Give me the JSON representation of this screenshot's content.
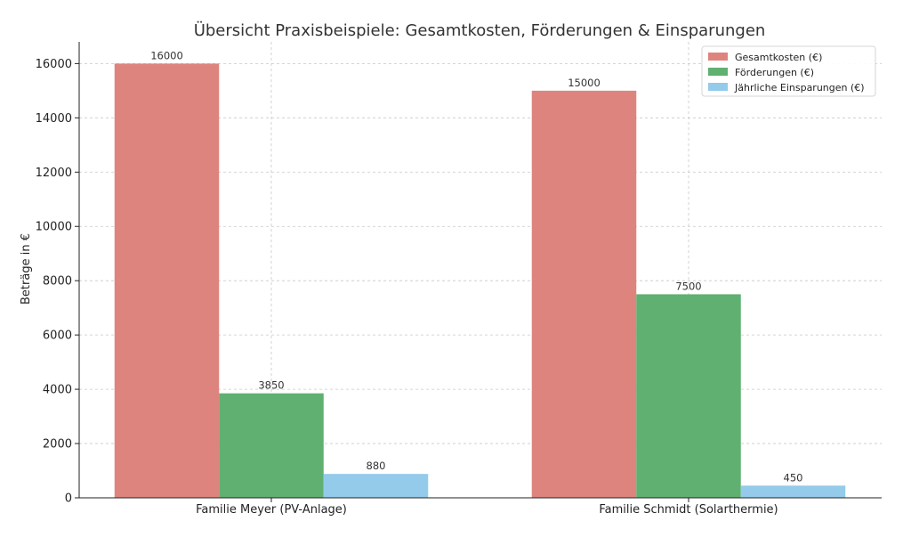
{
  "chart_data": {
    "type": "bar",
    "title": "Übersicht Praxisbeispiele: Gesamtkosten, Förderungen & Einsparungen",
    "xlabel": "",
    "ylabel": "Beträge in €",
    "categories": [
      "Familie Meyer (PV-Anlage)",
      "Familie Schmidt (Solarthermie)"
    ],
    "series": [
      {
        "name": "Gesamtkosten (€)",
        "values": [
          16000,
          15000
        ],
        "color": "#de847e"
      },
      {
        "name": "Förderungen (€)",
        "values": [
          3850,
          7500
        ],
        "color": "#5fb071"
      },
      {
        "name": "Jährliche Einsparungen (€)",
        "values": [
          880,
          450
        ],
        "color": "#94cbea"
      }
    ],
    "ylim": [
      0,
      16800
    ],
    "yticks": [
      0,
      2000,
      4000,
      6000,
      8000,
      10000,
      12000,
      14000,
      16000
    ],
    "grid": true,
    "legend_position": "top-right",
    "data_labels": true
  }
}
